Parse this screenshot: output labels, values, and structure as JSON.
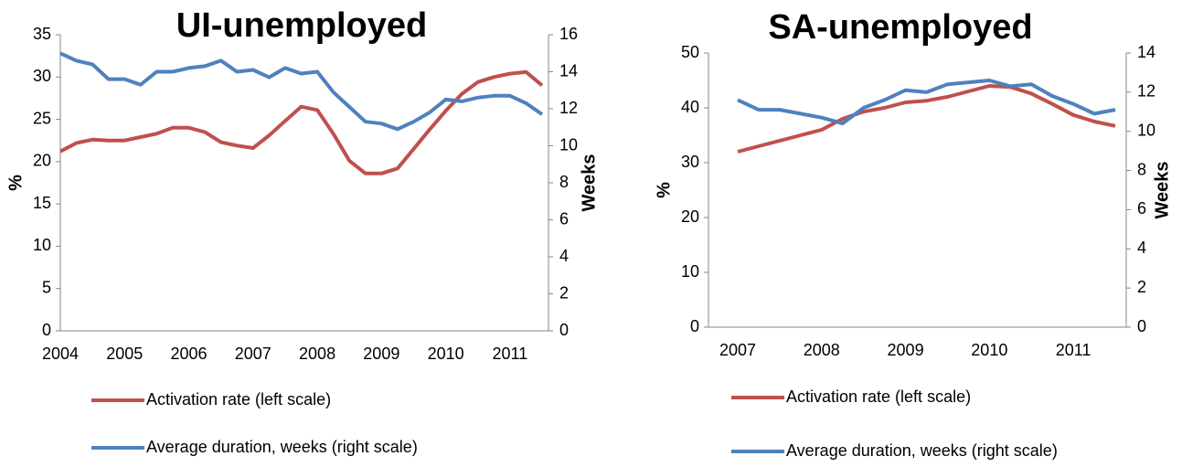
{
  "chart_data": [
    {
      "type": "line",
      "title": "UI-unemployed",
      "ylabel": "%",
      "y2label": "Weeks",
      "categories": [
        "2004",
        null,
        null,
        null,
        "2005",
        null,
        null,
        null,
        "2006",
        null,
        null,
        null,
        "2007",
        null,
        null,
        null,
        "2008",
        null,
        null,
        null,
        "2009",
        null,
        null,
        null,
        "2010",
        null,
        null,
        null,
        "2011",
        null,
        null
      ],
      "series": [
        {
          "name": "Activation rate (left scale)",
          "color": "#c0504d",
          "axis": "y",
          "values": [
            21.2,
            22.2,
            22.6,
            22.5,
            22.5,
            22.9,
            23.3,
            24.0,
            24.0,
            23.5,
            22.3,
            21.9,
            21.6,
            23.1,
            24.8,
            26.5,
            26.1,
            23.3,
            20.1,
            18.6,
            18.6,
            19.2,
            21.5,
            23.8,
            26.0,
            28.0,
            29.4,
            30.0,
            30.4,
            30.6,
            29.0
          ]
        },
        {
          "name": "Average duration, weeks (right scale)",
          "color": "#4f81bd",
          "axis": "y2",
          "values": [
            15.0,
            14.6,
            14.4,
            13.6,
            13.6,
            13.3,
            14.0,
            14.0,
            14.2,
            14.3,
            14.6,
            14.0,
            14.1,
            13.7,
            14.2,
            13.9,
            14.0,
            12.9,
            12.1,
            11.3,
            11.2,
            10.9,
            11.3,
            11.8,
            12.5,
            12.4,
            12.6,
            12.7,
            12.7,
            12.3,
            11.7
          ]
        }
      ],
      "ylim": [
        0,
        35
      ],
      "yticks": [
        0,
        5,
        10,
        15,
        20,
        25,
        30,
        35
      ],
      "y2lim": [
        0,
        16
      ],
      "y2ticks": [
        0,
        2,
        4,
        6,
        8,
        10,
        12,
        14,
        16
      ]
    },
    {
      "type": "line",
      "title": "SA-unemployed",
      "ylabel": "%",
      "y2label": "Weeks",
      "categories": [
        "2007",
        null,
        null,
        null,
        "2008",
        null,
        null,
        null,
        "2009",
        null,
        null,
        null,
        "2010",
        null,
        null,
        null,
        "2011",
        null,
        null
      ],
      "series": [
        {
          "name": "Activation rate (left scale)",
          "color": "#c0504d",
          "axis": "y",
          "values": [
            32,
            33,
            34,
            35,
            36,
            38,
            39.3,
            40,
            41,
            41.3,
            42,
            43,
            44,
            43.8,
            42.6,
            40.7,
            38.7,
            37.5,
            36.7
          ]
        },
        {
          "name": "Average duration, weeks (right scale)",
          "color": "#4f81bd",
          "axis": "y2",
          "values": [
            11.6,
            11.1,
            11.1,
            10.9,
            10.7,
            10.4,
            11.2,
            11.6,
            12.1,
            12.0,
            12.4,
            12.5,
            12.6,
            12.3,
            12.4,
            11.8,
            11.4,
            10.9,
            11.1
          ]
        }
      ],
      "ylim": [
        0,
        50
      ],
      "yticks": [
        0,
        10,
        20,
        30,
        40,
        50
      ],
      "y2lim": [
        0,
        14
      ],
      "y2ticks": [
        0,
        2,
        4,
        6,
        8,
        10,
        12,
        14
      ]
    }
  ]
}
